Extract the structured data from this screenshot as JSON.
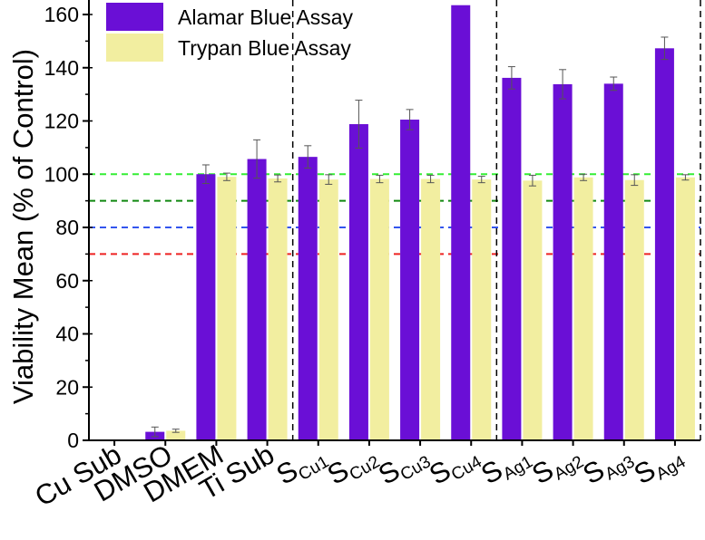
{
  "chart_data": {
    "type": "bar",
    "title": "",
    "ylabel": "Viability Mean (% of Control)",
    "xlabel": "",
    "ylim": [
      0,
      165
    ],
    "yticks": [
      0,
      20,
      40,
      60,
      80,
      100,
      120,
      140,
      160
    ],
    "categories": [
      {
        "main": "Cu Sub",
        "sub": ""
      },
      {
        "main": "DMSO",
        "sub": ""
      },
      {
        "main": "DMEM",
        "sub": ""
      },
      {
        "main": "Ti Sub",
        "sub": ""
      },
      {
        "main": "S",
        "sub": "Cu1"
      },
      {
        "main": "S",
        "sub": "Cu2"
      },
      {
        "main": "S",
        "sub": "Cu3"
      },
      {
        "main": "S",
        "sub": "Cu4"
      },
      {
        "main": "S",
        "sub": "Ag1"
      },
      {
        "main": "S",
        "sub": "Ag2"
      },
      {
        "main": "S",
        "sub": "Ag3"
      },
      {
        "main": "S",
        "sub": "Ag4"
      }
    ],
    "series": [
      {
        "name": "Alamar Blue Assay",
        "color": "#6a0fd6",
        "values": [
          0,
          3.2,
          100,
          105.7,
          106.5,
          118.8,
          120.5,
          163.5,
          136.2,
          133.8,
          134.0,
          147.3
        ],
        "errors": [
          0,
          1.8,
          3.5,
          7.2,
          4.2,
          9.0,
          3.8,
          0,
          4.2,
          5.5,
          2.5,
          4.2
        ]
      },
      {
        "name": "Trypan Blue Assay",
        "color": "#f2eea0",
        "values": [
          0,
          3.6,
          99.0,
          98.4,
          98.0,
          98.2,
          98.2,
          98.0,
          97.6,
          98.8,
          97.8,
          98.8
        ],
        "errors": [
          0,
          0.6,
          1.4,
          1.3,
          1.8,
          1.4,
          1.4,
          1.2,
          2.0,
          1.2,
          2.0,
          1.0
        ]
      }
    ],
    "reference_lines": [
      {
        "value": 100,
        "color": "#33ee33"
      },
      {
        "value": 90,
        "color": "#118811"
      },
      {
        "value": 80,
        "color": "#3355ee"
      },
      {
        "value": 70,
        "color": "#ee2222"
      }
    ],
    "group_separators_after_category_index": [
      3,
      7,
      11
    ],
    "legend_position": "top-left",
    "grid": false
  }
}
